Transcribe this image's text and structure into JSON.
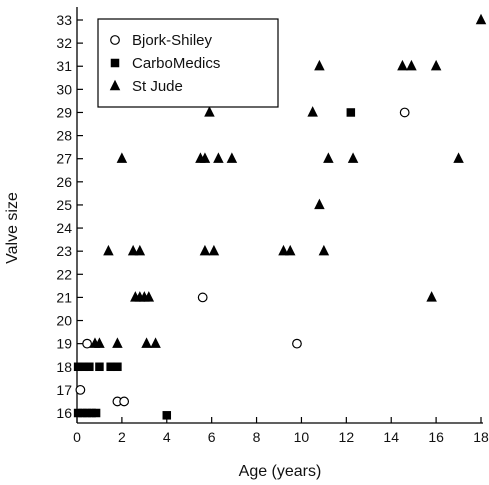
{
  "chart_data": {
    "type": "scatter",
    "title": "",
    "xlabel": "Age (years)",
    "ylabel": "Valve size",
    "xlim": [
      0,
      18
    ],
    "ylim": [
      16,
      33
    ],
    "x_ticks": [
      0,
      2,
      4,
      6,
      8,
      10,
      12,
      14,
      16,
      18
    ],
    "y_ticks": [
      16,
      17,
      18,
      19,
      20,
      21,
      22,
      23,
      24,
      25,
      26,
      27,
      28,
      29,
      30,
      31,
      32,
      33
    ],
    "grid": false,
    "legend_position": "top-left",
    "series": [
      {
        "name": "Bjork-Shiley",
        "marker": "circle-open",
        "color": "#000000",
        "points": [
          [
            0.15,
            17
          ],
          [
            0.45,
            19
          ],
          [
            1.8,
            16.5
          ],
          [
            2.1,
            16.5
          ],
          [
            5.6,
            21
          ],
          [
            9.8,
            19
          ],
          [
            14.6,
            29
          ]
        ]
      },
      {
        "name": "CarboMedics",
        "marker": "square-filled",
        "color": "#000000",
        "points": [
          [
            0.05,
            16
          ],
          [
            0.25,
            16
          ],
          [
            0.45,
            16
          ],
          [
            0.65,
            16
          ],
          [
            0.85,
            16
          ],
          [
            0.05,
            18
          ],
          [
            0.3,
            18
          ],
          [
            0.55,
            18
          ],
          [
            1.0,
            18
          ],
          [
            1.5,
            18
          ],
          [
            1.8,
            18
          ],
          [
            4.0,
            15.9
          ],
          [
            12.2,
            29
          ]
        ]
      },
      {
        "name": "St Jude",
        "marker": "triangle-filled",
        "color": "#000000",
        "points": [
          [
            0.8,
            19
          ],
          [
            1.0,
            19
          ],
          [
            1.8,
            19
          ],
          [
            3.1,
            19
          ],
          [
            3.5,
            19
          ],
          [
            2.6,
            21
          ],
          [
            2.8,
            21
          ],
          [
            3.0,
            21
          ],
          [
            3.2,
            21
          ],
          [
            15.8,
            21
          ],
          [
            1.4,
            23
          ],
          [
            2.5,
            23
          ],
          [
            2.8,
            23
          ],
          [
            5.7,
            23
          ],
          [
            6.1,
            23
          ],
          [
            9.2,
            23
          ],
          [
            9.5,
            23
          ],
          [
            11.0,
            23
          ],
          [
            10.8,
            25
          ],
          [
            2.0,
            27
          ],
          [
            5.5,
            27
          ],
          [
            5.7,
            27
          ],
          [
            6.3,
            27
          ],
          [
            6.9,
            27
          ],
          [
            11.2,
            27
          ],
          [
            12.3,
            27
          ],
          [
            17.0,
            27
          ],
          [
            5.9,
            29
          ],
          [
            10.5,
            29
          ],
          [
            10.8,
            31
          ],
          [
            14.5,
            31
          ],
          [
            14.9,
            31
          ],
          [
            16.0,
            31
          ],
          [
            18.0,
            33
          ]
        ]
      }
    ]
  }
}
